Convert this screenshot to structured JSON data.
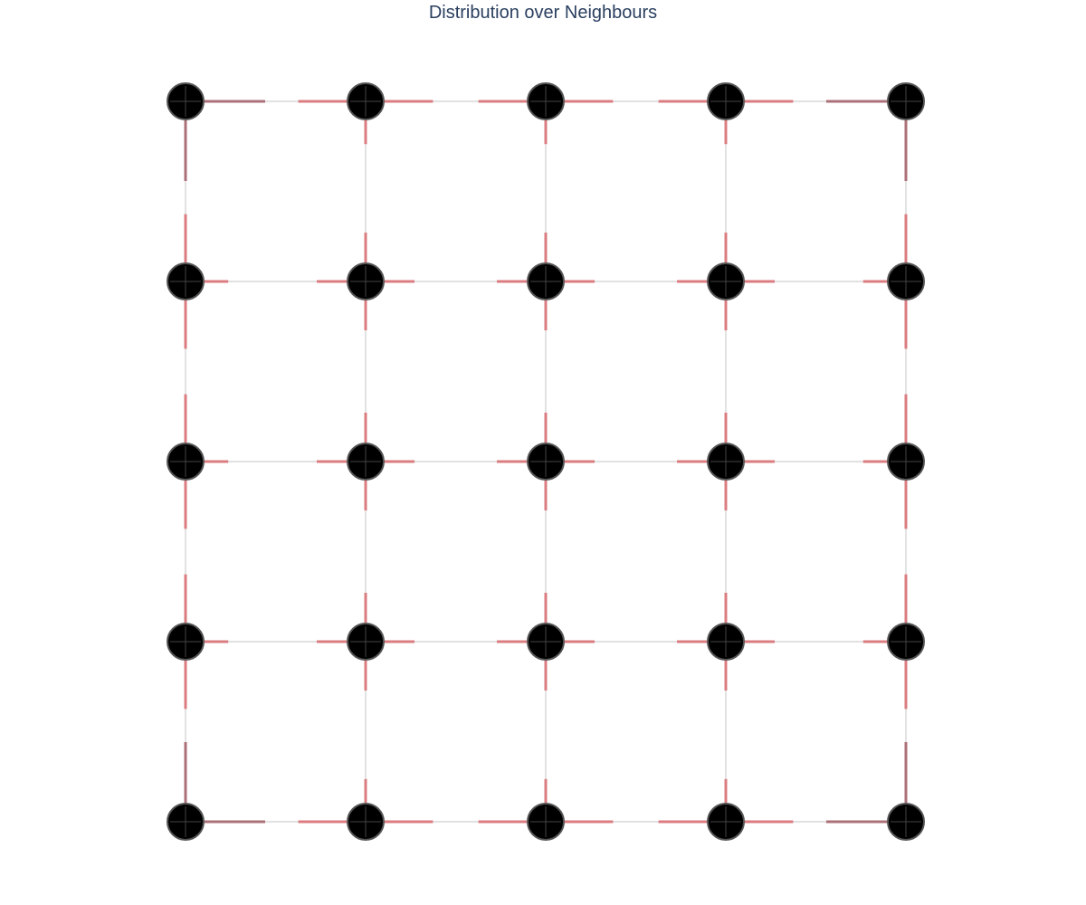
{
  "title": "Distribution over Neighbours",
  "grid": {
    "rows": 5,
    "cols": 5
  },
  "colors": {
    "node_fill": "#000000",
    "node_stroke": "#555555",
    "edge": "#cfcfcf",
    "arrow": "#d9767a",
    "arrow_dark": "#a86872",
    "title": "#2a3f5f"
  },
  "neighbour_probabilities": [
    [
      {
        "right": 0.5,
        "down": 0.5
      },
      {
        "left": 0.4,
        "right": 0.4,
        "down": 0.2
      },
      {
        "left": 0.4,
        "right": 0.4,
        "down": 0.2
      },
      {
        "left": 0.4,
        "right": 0.4,
        "down": 0.2
      },
      {
        "left": 0.5,
        "down": 0.5
      }
    ],
    [
      {
        "up": 0.4,
        "right": 0.2,
        "down": 0.4
      },
      {
        "up": 0.25,
        "left": 0.25,
        "right": 0.25,
        "down": 0.25
      },
      {
        "up": 0.25,
        "left": 0.25,
        "right": 0.25,
        "down": 0.25
      },
      {
        "up": 0.25,
        "left": 0.25,
        "right": 0.25,
        "down": 0.25
      },
      {
        "up": 0.4,
        "left": 0.2,
        "down": 0.4
      }
    ],
    [
      {
        "up": 0.4,
        "right": 0.2,
        "down": 0.4
      },
      {
        "up": 0.25,
        "left": 0.25,
        "right": 0.25,
        "down": 0.25
      },
      {
        "up": 0.25,
        "left": 0.25,
        "right": 0.25,
        "down": 0.25
      },
      {
        "up": 0.25,
        "left": 0.25,
        "right": 0.25,
        "down": 0.25
      },
      {
        "up": 0.4,
        "left": 0.2,
        "down": 0.4
      }
    ],
    [
      {
        "up": 0.4,
        "right": 0.2,
        "down": 0.4
      },
      {
        "up": 0.25,
        "left": 0.25,
        "right": 0.25,
        "down": 0.25
      },
      {
        "up": 0.25,
        "left": 0.25,
        "right": 0.25,
        "down": 0.25
      },
      {
        "up": 0.25,
        "left": 0.25,
        "right": 0.25,
        "down": 0.25
      },
      {
        "up": 0.4,
        "left": 0.2,
        "down": 0.4
      }
    ],
    [
      {
        "up": 0.5,
        "right": 0.5
      },
      {
        "up": 0.2,
        "left": 0.4,
        "right": 0.4
      },
      {
        "up": 0.2,
        "left": 0.4,
        "right": 0.4
      },
      {
        "up": 0.2,
        "left": 0.4,
        "right": 0.4
      },
      {
        "up": 0.5,
        "left": 0.5
      }
    ]
  ]
}
